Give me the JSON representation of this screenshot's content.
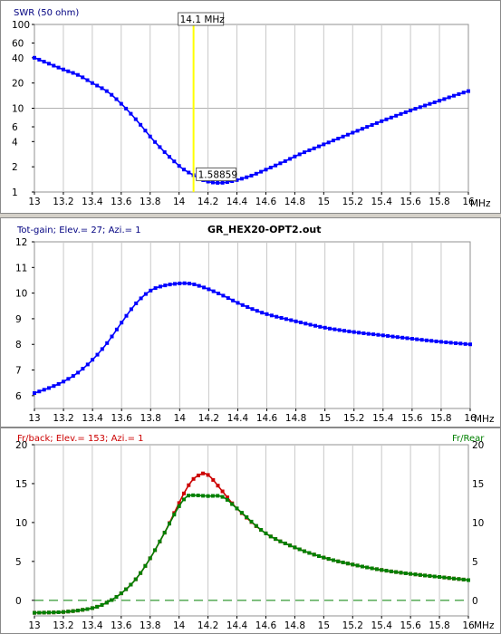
{
  "chart_data": [
    {
      "type": "line",
      "title": "SWR (50 ohm)",
      "xlabel": "MHz",
      "x_unit": "MHz",
      "xlim": [
        13,
        16
      ],
      "ylim": [
        1,
        100
      ],
      "y_scale": "log",
      "x_ticks": [
        "13",
        "13.2",
        "13.4",
        "13.6",
        "13.8",
        "14",
        "14.2",
        "14.4",
        "14.6",
        "14.8",
        "15",
        "15.2",
        "15.4",
        "15.6",
        "15.8",
        "16"
      ],
      "y_ticks": [
        1,
        2,
        4,
        6,
        10,
        20,
        40,
        60,
        100
      ],
      "grid": "x-ticks-only",
      "marker": {
        "x": 14.1,
        "label": "14.1 MHz",
        "color": "#ffff00",
        "value_label": "1.58859"
      },
      "series": [
        {
          "color": "#0000ff",
          "x": [
            13.0,
            13.1,
            13.2,
            13.3,
            13.4,
            13.5,
            13.6,
            13.7,
            13.8,
            13.9,
            14.0,
            14.05,
            14.1,
            14.15,
            14.2,
            14.25,
            14.3,
            14.35,
            14.4,
            14.5,
            14.6,
            14.7,
            14.8,
            15.0,
            15.2,
            15.4,
            15.6,
            15.8,
            16.0
          ],
          "y": [
            40,
            34,
            29,
            25,
            20,
            16,
            11.3,
            7.4,
            4.6,
            3.0,
            2.05,
            1.78,
            1.58859,
            1.42,
            1.33,
            1.29,
            1.29,
            1.33,
            1.39,
            1.57,
            1.85,
            2.2,
            2.65,
            3.7,
            5.1,
            7.0,
            9.4,
            12.3,
            16.0
          ]
        }
      ]
    },
    {
      "type": "line",
      "title": "Tot-gain; Elev.= 27; Azi.= 1",
      "filename": "GR_HEX20-OPT2.out",
      "xlabel": "MHz",
      "xlim": [
        13,
        16
      ],
      "ylim": [
        5.5,
        12
      ],
      "x_ticks": [
        "13",
        "13.2",
        "13.4",
        "13.6",
        "13.8",
        "14",
        "14.2",
        "14.4",
        "14.6",
        "14.8",
        "15",
        "15.2",
        "15.4",
        "15.6",
        "15.8",
        "16"
      ],
      "y_ticks": [
        6,
        7,
        8,
        9,
        10,
        11,
        12
      ],
      "grid": "x-ticks-only",
      "series": [
        {
          "color": "#0000ff",
          "x": [
            13.0,
            13.1,
            13.2,
            13.3,
            13.4,
            13.5,
            13.6,
            13.7,
            13.8,
            13.9,
            14.0,
            14.05,
            14.1,
            14.2,
            14.3,
            14.4,
            14.5,
            14.6,
            14.8,
            15.0,
            15.2,
            15.4,
            15.6,
            15.8,
            16.0
          ],
          "y": [
            6.1,
            6.3,
            6.55,
            6.9,
            7.4,
            8.05,
            8.85,
            9.6,
            10.1,
            10.3,
            10.38,
            10.38,
            10.34,
            10.15,
            9.9,
            9.62,
            9.38,
            9.18,
            8.9,
            8.65,
            8.48,
            8.35,
            8.22,
            8.1,
            8.0
          ]
        }
      ]
    },
    {
      "type": "line",
      "title": "Fr/back; Elev.= 153; Azi.= 1",
      "right_title": "Fr/Rear",
      "xlabel": "MHz",
      "xlim": [
        13,
        16
      ],
      "ylim": [
        -2,
        20
      ],
      "x_ticks": [
        "13",
        "13.2",
        "13.4",
        "13.6",
        "13.8",
        "14",
        "14.2",
        "14.4",
        "14.6",
        "14.8",
        "15",
        "15.2",
        "15.4",
        "15.6",
        "15.8",
        "16"
      ],
      "y_ticks": [
        0,
        5,
        10,
        15,
        20
      ],
      "grid": "x-ticks-only",
      "zero_line": {
        "y": 0,
        "style": "dashed",
        "color": "#008000"
      },
      "series": [
        {
          "name": "Fr/back",
          "color": "#cc0000",
          "x": [
            13.0,
            13.2,
            13.4,
            13.5,
            13.6,
            13.7,
            13.8,
            13.9,
            14.0,
            14.05,
            14.1,
            14.15,
            14.18,
            14.22,
            14.3,
            14.4,
            14.6,
            14.8,
            15.0,
            15.2,
            15.4,
            15.6,
            15.8,
            16.0
          ],
          "y": [
            -1.6,
            -1.5,
            -1.0,
            -0.3,
            0.9,
            2.7,
            5.4,
            8.7,
            12.5,
            14.3,
            15.6,
            16.2,
            16.3,
            15.8,
            14.0,
            11.8,
            8.6,
            6.8,
            5.5,
            4.6,
            3.9,
            3.4,
            3.0,
            2.6
          ]
        },
        {
          "name": "Fr/Rear",
          "color": "#008000",
          "x": [
            13.0,
            13.2,
            13.4,
            13.5,
            13.6,
            13.7,
            13.8,
            13.9,
            14.0,
            14.05,
            14.08,
            14.2,
            14.3,
            14.4,
            14.6,
            14.8,
            15.0,
            15.2,
            15.4,
            15.6,
            15.8,
            16.0
          ],
          "y": [
            -1.6,
            -1.5,
            -1.0,
            -0.3,
            0.9,
            2.7,
            5.4,
            8.7,
            12.1,
            13.3,
            13.5,
            13.4,
            13.3,
            11.8,
            8.6,
            6.8,
            5.5,
            4.6,
            3.9,
            3.4,
            3.0,
            2.6
          ]
        }
      ]
    }
  ]
}
